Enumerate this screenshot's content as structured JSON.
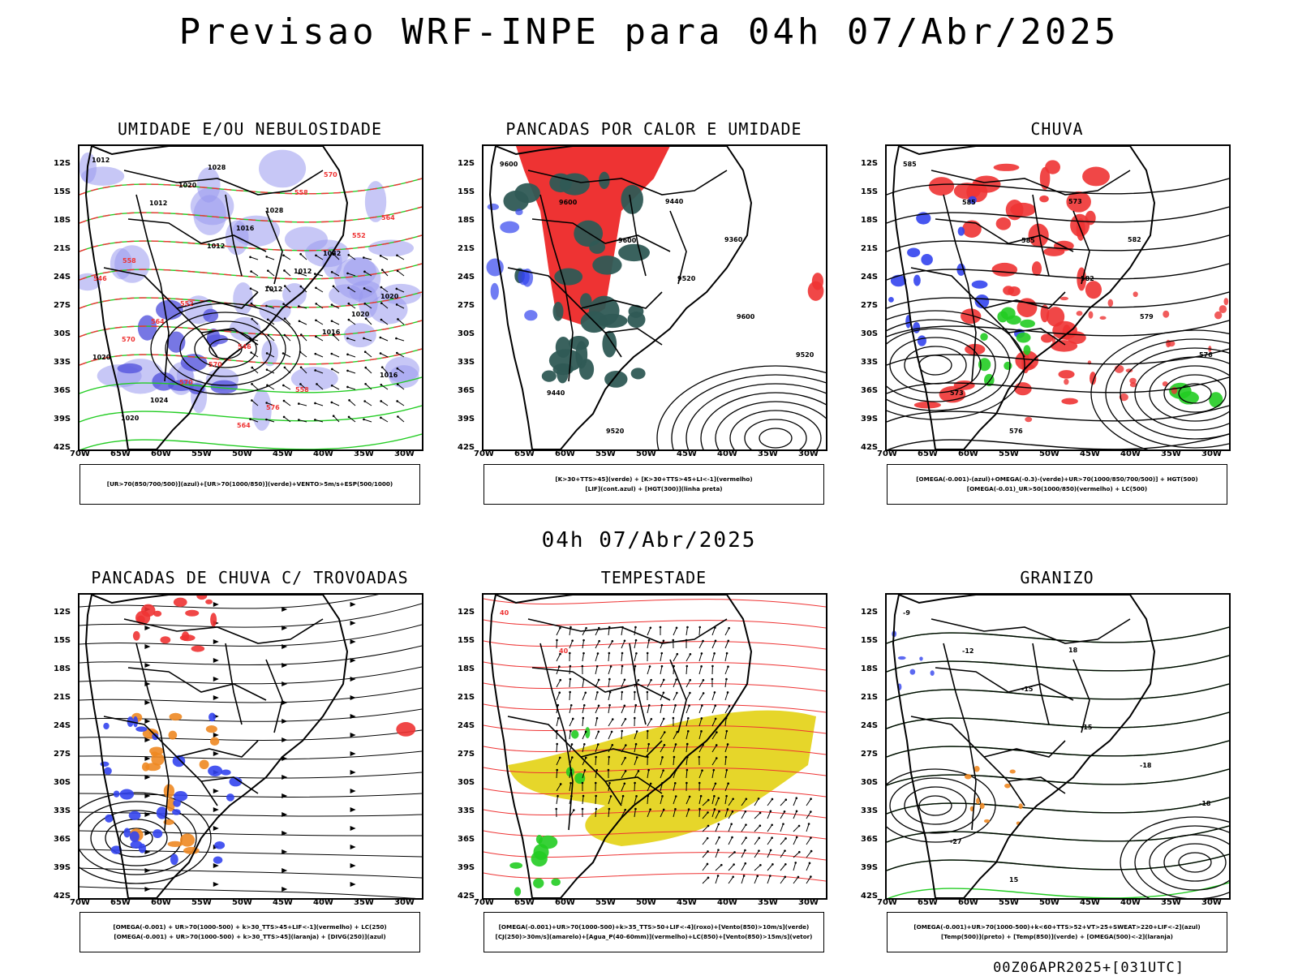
{
  "title": "Previsao WRF-INPE  para 04h 07/Abr/2025",
  "subtitle": "04h 07/Abr/2025",
  "footer": "00Z06APR2025+[031UTC]",
  "lat_ticks": [
    "12S",
    "15S",
    "18S",
    "21S",
    "24S",
    "27S",
    "30S",
    "33S",
    "36S",
    "39S",
    "42S"
  ],
  "lon_ticks": [
    "70W",
    "65W",
    "60W",
    "55W",
    "50W",
    "45W",
    "40W",
    "35W",
    "30W"
  ],
  "colors": {
    "blue": "#3344ee",
    "green": "#22cc22",
    "red": "#ee3333",
    "orange": "#ee8822",
    "yellow": "#e6d62a",
    "lavender": "#9999ee",
    "darkteal": "#2f5a55",
    "black": "#000000"
  },
  "panels": [
    {
      "title": "UMIDADE E/OU NEBULOSIDADE",
      "legend": [
        "[UR>70(850/700/500)](azul)+[UR>70(1000/850)](verde)+VENTO>5m/s+ESP(500/1000)"
      ],
      "labels": [
        "1012",
        "1012",
        "1012",
        "1012",
        "1016",
        "1016",
        "1020",
        "1020",
        "1016",
        "1012",
        "1020",
        "1020",
        "1024",
        "1028",
        "1028",
        "1032",
        "1020",
        "570",
        "570",
        "564",
        "558",
        "552",
        "546",
        "564",
        "570",
        "576",
        "570",
        "564",
        "558",
        "552",
        "546",
        "558"
      ]
    },
    {
      "title": "PANCADAS POR CALOR E UMIDADE",
      "legend": [
        "[K>30+TTS>45](verde) + [K>30+TTS>45+LI<-1](vermelho)",
        "[LIF](cont.azul) + [HGT(300)](linha preta)"
      ],
      "labels": [
        "9600",
        "9600",
        "9600",
        "9520",
        "9600",
        "9520",
        "9440",
        "9520",
        "9440",
        "9360"
      ]
    },
    {
      "title": "CHUVA",
      "legend": [
        "[OMEGA(-0.001)-(azul)+OMEGA(-0.3)-(verde)+UR>70(1000/850/700/500)] + HGT(500)",
        "[OMEGA(-0.01)_UR>50(1000/850)(vermelho) + LC(500)"
      ],
      "labels": [
        "585",
        "585",
        "585",
        "582",
        "579",
        "576",
        "573",
        "576",
        "573",
        "582"
      ]
    },
    {
      "title": "PANCADAS DE CHUVA C/ TROVOADAS",
      "legend": [
        "[OMEGA(-0.001) + UR>70(1000-500) + k>30_TTS>45+LIF<-1](vermelho) + LC(250)",
        "[OMEGA(-0.001) + UR>70(1000-500) + k>30_TTS>45](laranja) + [DIVG(250)](azul)"
      ],
      "labels": []
    },
    {
      "title": "TEMPESTADE",
      "legend": [
        "[OMEGA(-0.001)+UR>70(1000-500)+k>35_TTS>50+LIF<-4](roxo)+[Vento(850)>10m/s](verde)",
        "[CJ(250)>30m/s](amarelo)+[Agua_P(40-60mm)](vermelho)+LC(850)+[Vento(850)>15m/s](vetor)"
      ],
      "labels": [
        "40",
        "40"
      ]
    },
    {
      "title": "GRANIZO",
      "legend": [
        "[OMEGA(-0.001)+UR>70(1000-500)+k<60+TTS>52+VT>25+SWEAT>220+LIF<-2](azul)",
        "[Temp(500)](preto) + [Temp(850)](verde) + [OMEGA(500)<-2](laranja)"
      ],
      "labels": [
        "-9",
        "-12",
        "-15",
        "-15",
        "-18",
        "-18",
        "-27",
        "15",
        "18"
      ]
    }
  ]
}
